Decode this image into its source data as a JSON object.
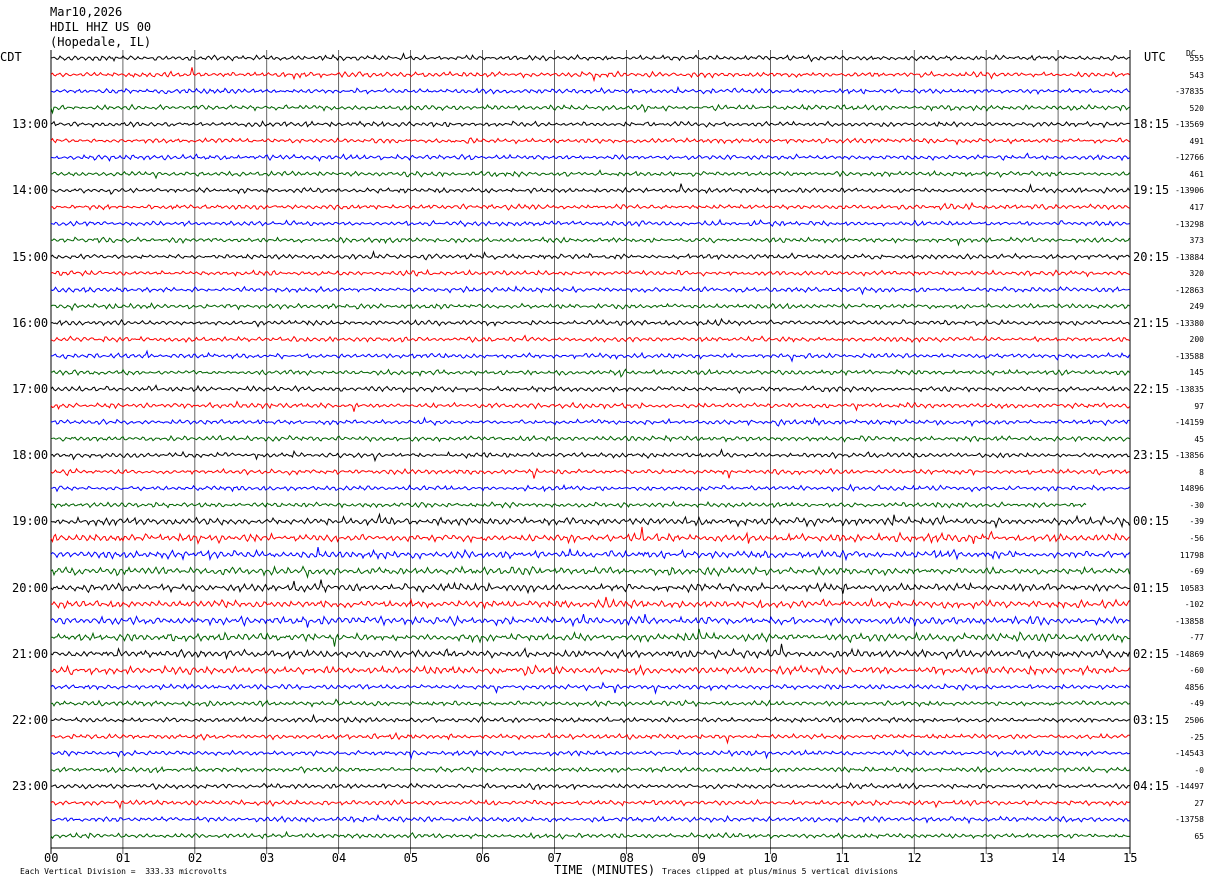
{
  "header": {
    "date": "Mar10,2026",
    "station": "HDIL HHZ US 00",
    "location": "(Hopedale, IL)"
  },
  "labels": {
    "left_tz": "CDT",
    "right_tz": "UTC",
    "dc_header": "DC",
    "x_axis_title": "TIME (MINUTES)",
    "scale_note": "Each Vertical Division =  333.33 microvolts",
    "clip_note": "Traces clipped at plus/minus 5 vertical divisions"
  },
  "colors": {
    "trace_cycle": [
      "#000000",
      "#ff0000",
      "#0000ff",
      "#006400"
    ],
    "grid": "#000000",
    "background": "#ffffff"
  },
  "chart_data": {
    "type": "line",
    "title": "HDIL HHZ US 00",
    "xlabel": "TIME (MINUTES)",
    "ylabel": "",
    "xlim": [
      0,
      15
    ],
    "x_ticks": [
      "00",
      "01",
      "02",
      "03",
      "04",
      "05",
      "06",
      "07",
      "08",
      "09",
      "10",
      "11",
      "12",
      "13",
      "14",
      "15"
    ],
    "left_hour_labels": [
      "13:00",
      "14:00",
      "15:00",
      "16:00",
      "17:00",
      "18:00",
      "19:00",
      "20:00",
      "21:00",
      "22:00",
      "23:00"
    ],
    "right_hour_labels": [
      "18:15",
      "19:15",
      "20:15",
      "21:15",
      "22:15",
      "23:15",
      "00:15",
      "01:15",
      "02:15",
      "03:15",
      "04:15"
    ],
    "trace_count": 48,
    "hour_label_first_trace": 4,
    "traces_per_hour": 4,
    "incomplete_trace": {
      "index": 27,
      "end_minute": 14.4
    },
    "dc_offsets": [
      "555",
      "543",
      "-37835",
      "520",
      "-13569",
      "491",
      "-12766",
      "461",
      "-13906",
      "417",
      "-13298",
      "373",
      "-13884",
      "320",
      "-12863",
      "249",
      "-13380",
      "200",
      "-13588",
      "145",
      "-13835",
      "97",
      "-14159",
      "45",
      "-13856",
      "8",
      "14896",
      "-30",
      "-39",
      "-56",
      "11798",
      "-69",
      "10583",
      "-102",
      "-13858",
      "-77",
      "-14869",
      "-60",
      "4856",
      "-49",
      "2506",
      "-25",
      "-14543",
      "-0",
      "-14497",
      "27",
      "-13758",
      "65"
    ],
    "annotations": []
  }
}
